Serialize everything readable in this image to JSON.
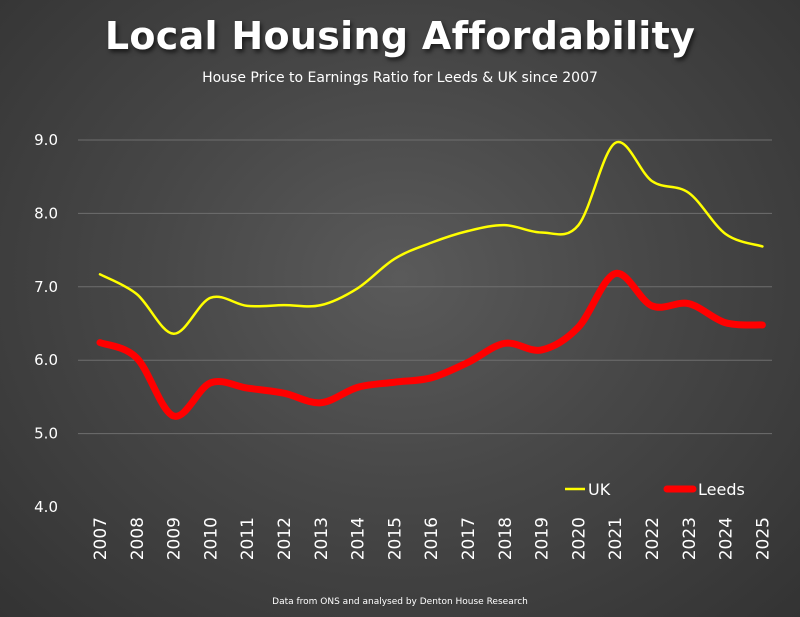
{
  "title": "Local Housing Affordability",
  "subtitle": "House Price to Earnings Ratio for Leeds & UK since 2007",
  "footer": "Data from ONS and analysed by Denton House Research",
  "chart_data": {
    "type": "line",
    "title": "Local Housing Affordability",
    "subtitle": "House Price to Earnings Ratio for Leeds & UK since 2007",
    "xlabel": "",
    "ylabel": "",
    "x": [
      "2007",
      "2008",
      "2009",
      "2010",
      "2011",
      "2012",
      "2013",
      "2014",
      "2015",
      "2016",
      "2017",
      "2018",
      "2019",
      "2020",
      "2021",
      "2022",
      "2023",
      "2024",
      "2025"
    ],
    "ylim": [
      4.0,
      9.0
    ],
    "yticks": [
      "4.0",
      "5.0",
      "6.0",
      "7.0",
      "8.0",
      "9.0"
    ],
    "grid": true,
    "legend": "bottom-right",
    "series": [
      {
        "name": "UK",
        "color": "#ffff00",
        "values": [
          7.17,
          6.9,
          6.36,
          6.85,
          6.74,
          6.75,
          6.75,
          6.98,
          7.38,
          7.6,
          7.76,
          7.84,
          7.74,
          7.84,
          8.96,
          8.44,
          8.28,
          7.72,
          7.55
        ]
      },
      {
        "name": "Leeds",
        "color": "#ff0000",
        "values": [
          6.24,
          6.03,
          5.24,
          5.69,
          5.62,
          5.55,
          5.42,
          5.63,
          5.7,
          5.76,
          5.97,
          6.23,
          6.14,
          6.45,
          7.18,
          6.74,
          6.77,
          6.51,
          6.48
        ]
      }
    ]
  }
}
